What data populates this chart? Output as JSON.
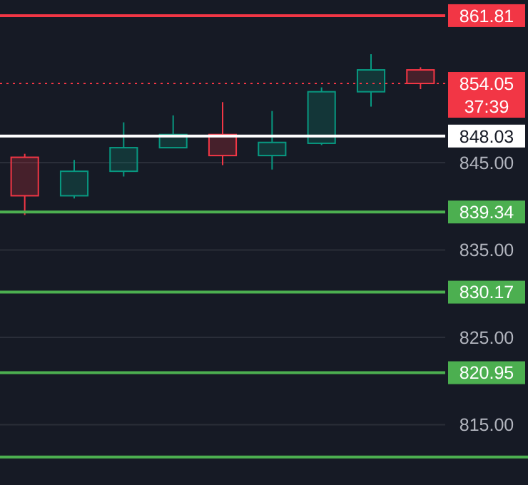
{
  "chart_data": {
    "type": "candlestick",
    "categories": [
      null,
      null,
      null,
      null,
      null,
      null,
      null,
      null,
      null
    ],
    "ohlc": [
      [
        845.6,
        846.0,
        839.0,
        841.2
      ],
      [
        841.2,
        845.3,
        840.9,
        844.0
      ],
      [
        844.0,
        849.6,
        843.4,
        846.7
      ],
      [
        846.7,
        850.4,
        846.7,
        848.2
      ],
      [
        848.2,
        851.9,
        844.7,
        845.8
      ],
      [
        845.8,
        850.9,
        844.2,
        847.3
      ],
      [
        847.2,
        853.6,
        847.0,
        853.1
      ],
      [
        853.1,
        857.4,
        851.4,
        855.6
      ],
      [
        855.6,
        855.9,
        853.4,
        854.05
      ]
    ],
    "colors": [
      "#f23645",
      "#089981",
      "#089981",
      "#089981",
      "#f23645",
      "#089981",
      "#089981",
      "#089981",
      "#f23645"
    ],
    "ylim": [
      808.1,
      863.6
    ],
    "yticks": [
      {
        "value": 815,
        "label": "815.00"
      },
      {
        "value": 825,
        "label": "825.00"
      },
      {
        "value": 835,
        "label": "835.00"
      },
      {
        "value": 845,
        "label": "845.00"
      }
    ],
    "grid": "y",
    "tick_labels": "y",
    "ref_lines": [
      {
        "axis": "y",
        "value": 861.81,
        "label": "861.81",
        "color": "#f23645"
      },
      {
        "axis": "y",
        "value": 854.05,
        "label": "854.05",
        "color": "#f23645",
        "line_style": "dotted"
      },
      {
        "axis": "y",
        "value": 848.03,
        "label": "848.03",
        "color": "#ffffff"
      },
      {
        "axis": "y",
        "value": 839.34,
        "label": "839.34",
        "color": "#4caf50"
      },
      {
        "axis": "y",
        "value": 830.17,
        "label": "830.17",
        "color": "#4caf50"
      },
      {
        "axis": "y",
        "value": 820.95,
        "label": "820.95",
        "color": "#4caf50"
      },
      {
        "axis": "y",
        "value": 811.3,
        "label": null,
        "color": "#4caf50"
      }
    ],
    "annotations": [
      "37:39"
    ]
  }
}
